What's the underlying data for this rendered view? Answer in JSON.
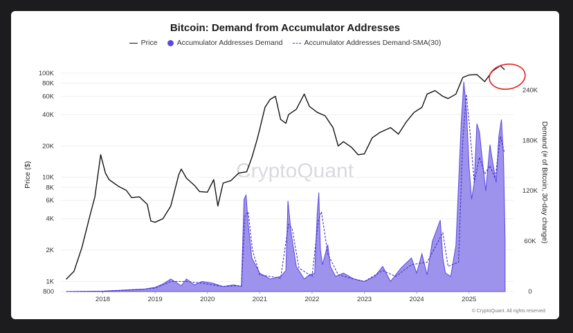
{
  "chart_data": {
    "type": "line",
    "title": "Bitcoin: Demand from Accumulator Addresses",
    "legend": [
      {
        "label": "Price",
        "style": "line",
        "color": "#111111"
      },
      {
        "label": "Accumulator Addresses Demand",
        "style": "area",
        "color": "#5b48e0"
      },
      {
        "label": "Accumulator Addresses Demand-SMA(30)",
        "style": "dashed",
        "color": "#4a3fd1"
      }
    ],
    "legend_position": "top-center",
    "xlabel": "",
    "ylabel_left": "Price ($)",
    "ylabel_right": "Demand (# of Bitcoin, 30-day change)",
    "x_ticks": [
      "2018",
      "2019",
      "2020",
      "2021",
      "2022",
      "2023",
      "2024",
      "2025"
    ],
    "y_left_scale": "log",
    "y_left_range": [
      800,
      120000
    ],
    "y_left_ticks": [
      {
        "value": 800,
        "label": "800"
      },
      {
        "value": 1000,
        "label": "1K"
      },
      {
        "value": 2000,
        "label": "2K"
      },
      {
        "value": 4000,
        "label": "4K"
      },
      {
        "value": 6000,
        "label": "6K"
      },
      {
        "value": 8000,
        "label": "8K"
      },
      {
        "value": 10000,
        "label": "10K"
      },
      {
        "value": 20000,
        "label": "20K"
      },
      {
        "value": 40000,
        "label": "40K"
      },
      {
        "value": 60000,
        "label": "60K"
      },
      {
        "value": 80000,
        "label": "80K"
      },
      {
        "value": 100000,
        "label": "100K"
      }
    ],
    "y_right_range": [
      0,
      270000
    ],
    "y_right_ticks": [
      {
        "value": 0,
        "label": "0"
      },
      {
        "value": 60000,
        "label": "60K"
      },
      {
        "value": 120000,
        "label": "120K"
      },
      {
        "value": 180000,
        "label": "180K"
      },
      {
        "value": 240000,
        "label": "240K"
      }
    ],
    "x_range": [
      2017.2,
      2025.85
    ],
    "series": [
      {
        "name": "Price",
        "axis": "left",
        "x": [
          2017.3,
          2017.45,
          2017.6,
          2017.75,
          2017.85,
          2017.96,
          2018.05,
          2018.12,
          2018.3,
          2018.45,
          2018.55,
          2018.7,
          2018.85,
          2018.92,
          2019.0,
          2019.15,
          2019.3,
          2019.45,
          2019.5,
          2019.6,
          2019.75,
          2019.85,
          2020.0,
          2020.12,
          2020.2,
          2020.3,
          2020.45,
          2020.6,
          2020.75,
          2020.85,
          2020.95,
          2021.0,
          2021.1,
          2021.2,
          2021.3,
          2021.4,
          2021.5,
          2021.55,
          2021.7,
          2021.85,
          2021.95,
          2022.1,
          2022.25,
          2022.4,
          2022.5,
          2022.6,
          2022.75,
          2022.88,
          2023.0,
          2023.15,
          2023.3,
          2023.5,
          2023.65,
          2023.8,
          2023.95,
          2024.1,
          2024.2,
          2024.35,
          2024.5,
          2024.6,
          2024.75,
          2024.88,
          2025.0,
          2025.15,
          2025.3,
          2025.45,
          2025.6,
          2025.68
        ],
        "values": [
          1050,
          1250,
          2100,
          4200,
          6500,
          16500,
          11000,
          9500,
          8200,
          7500,
          6400,
          6500,
          5500,
          3800,
          3700,
          4000,
          5300,
          10500,
          12000,
          9800,
          8400,
          7300,
          7200,
          9500,
          5300,
          8800,
          9300,
          11000,
          11300,
          15500,
          23000,
          29000,
          47000,
          56000,
          60000,
          36000,
          33000,
          40000,
          45000,
          63000,
          48000,
          42000,
          39000,
          30000,
          20000,
          22000,
          19500,
          16500,
          16800,
          24000,
          27000,
          30000,
          26000,
          34000,
          42000,
          47000,
          63000,
          68000,
          60000,
          57000,
          63000,
          91000,
          96000,
          97000,
          83000,
          105000,
          118000,
          108000
        ]
      },
      {
        "name": "Accumulator Addresses Demand",
        "axis": "right",
        "x": [
          2017.3,
          2018.0,
          2018.3,
          2018.6,
          2018.8,
          2019.0,
          2019.15,
          2019.3,
          2019.5,
          2019.6,
          2019.75,
          2019.9,
          2020.1,
          2020.3,
          2020.5,
          2020.65,
          2020.7,
          2020.74,
          2020.78,
          2020.85,
          2021.0,
          2021.2,
          2021.4,
          2021.5,
          2021.54,
          2021.6,
          2021.7,
          2021.85,
          2021.95,
          2022.05,
          2022.1,
          2022.13,
          2022.16,
          2022.2,
          2022.3,
          2022.35,
          2022.45,
          2022.6,
          2022.8,
          2023.0,
          2023.2,
          2023.35,
          2023.5,
          2023.7,
          2023.9,
          2024.0,
          2024.1,
          2024.2,
          2024.3,
          2024.45,
          2024.5,
          2024.55,
          2024.65,
          2024.75,
          2024.85,
          2024.9,
          2024.95,
          2025.0,
          2025.05,
          2025.1,
          2025.15,
          2025.2,
          2025.25,
          2025.32,
          2025.4,
          2025.45,
          2025.52,
          2025.57,
          2025.62,
          2025.66,
          2025.69
        ],
        "values": [
          0,
          500,
          1500,
          2500,
          3000,
          5000,
          9000,
          15000,
          7000,
          15000,
          8000,
          12000,
          10000,
          6000,
          8000,
          6000,
          110000,
          115000,
          80000,
          40000,
          22000,
          15000,
          18000,
          25000,
          108000,
          70000,
          30000,
          15000,
          20000,
          22000,
          95000,
          118000,
          50000,
          32000,
          56000,
          30000,
          18000,
          22000,
          15000,
          12000,
          18000,
          30000,
          12000,
          28000,
          40000,
          22000,
          45000,
          20000,
          60000,
          85000,
          40000,
          22000,
          18000,
          55000,
          200000,
          250000,
          218000,
          150000,
          110000,
          130000,
          200000,
          190000,
          160000,
          120000,
          175000,
          155000,
          130000,
          185000,
          205000,
          160000,
          60000
        ]
      },
      {
        "name": "Accumulator Addresses Demand-SMA(30)",
        "axis": "right",
        "style": "dashed",
        "x": [
          2017.3,
          2018.0,
          2018.6,
          2019.0,
          2019.3,
          2019.6,
          2019.9,
          2020.3,
          2020.65,
          2020.72,
          2020.78,
          2020.86,
          2021.0,
          2021.4,
          2021.55,
          2021.62,
          2021.75,
          2022.0,
          2022.12,
          2022.18,
          2022.3,
          2022.5,
          2022.8,
          2023.0,
          2023.35,
          2023.6,
          2023.9,
          2024.2,
          2024.5,
          2024.6,
          2024.8,
          2024.88,
          2024.95,
          2025.02,
          2025.1,
          2025.2,
          2025.3,
          2025.4,
          2025.5,
          2025.6,
          2025.68
        ],
        "values": [
          0,
          300,
          2000,
          4000,
          12000,
          12000,
          10000,
          6000,
          7000,
          90000,
          95000,
          50000,
          20000,
          16000,
          80000,
          75000,
          28000,
          18000,
          85000,
          95000,
          45000,
          20000,
          15000,
          12000,
          25000,
          18000,
          32000,
          35000,
          70000,
          30000,
          35000,
          180000,
          235000,
          190000,
          130000,
          160000,
          140000,
          150000,
          135000,
          185000,
          165000
        ]
      }
    ],
    "annotation": "red hand-drawn circle around latest price peak"
  },
  "watermark": "CryptoQuant",
  "copyright": "© CryptoQuant. All rights reserved"
}
